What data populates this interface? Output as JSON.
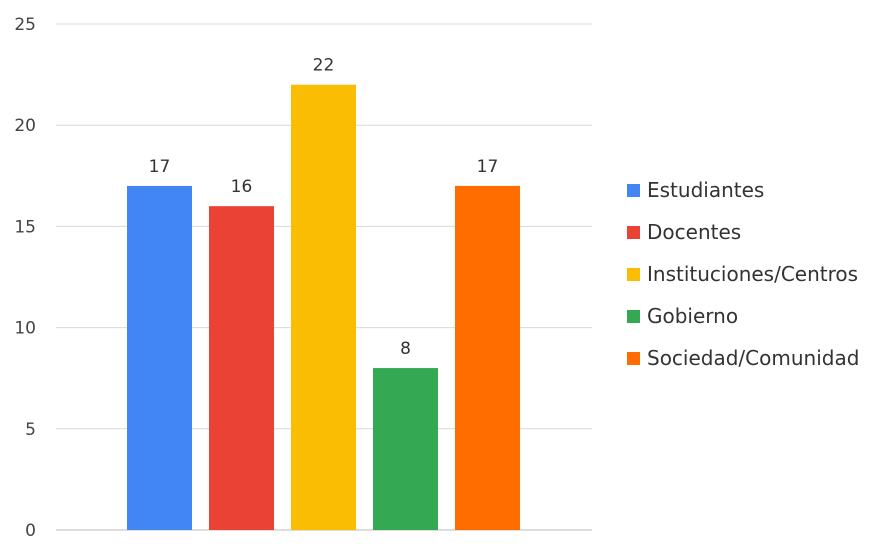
{
  "chart_data": {
    "type": "bar",
    "title": "",
    "xlabel": "",
    "ylabel": "",
    "ylim": [
      0,
      25
    ],
    "yticks": [
      0,
      5,
      10,
      15,
      20,
      25
    ],
    "grid": true,
    "legend_position": "right",
    "series": [
      {
        "name": "Estudiantes",
        "value": 17,
        "color": "#4285F4"
      },
      {
        "name": "Docentes",
        "value": 16,
        "color": "#EA4335"
      },
      {
        "name": "Instituciones/Centros",
        "value": 22,
        "color": "#FBBC04"
      },
      {
        "name": "Gobierno",
        "value": 8,
        "color": "#34A853"
      },
      {
        "name": "Sociedad/Comunidad",
        "value": 17,
        "color": "#FF6D01"
      }
    ]
  }
}
